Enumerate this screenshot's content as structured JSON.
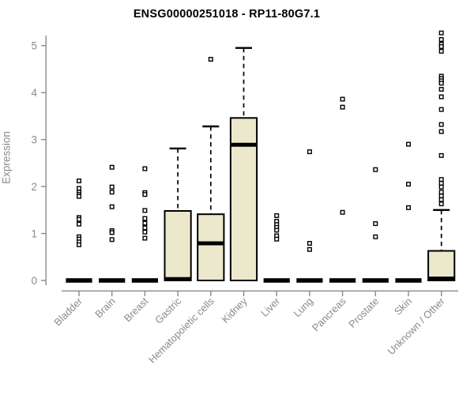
{
  "chart_data": {
    "type": "boxplot",
    "title": "ENSG00000251018 - RP11-80G7.1",
    "ylabel": "Expression",
    "ylim": [
      0,
      5.3
    ],
    "yticks": [
      0,
      1,
      2,
      3,
      4,
      5
    ],
    "grid": false,
    "legend": false,
    "categories": [
      "Bladder",
      "Brain",
      "Breast",
      "Gastric",
      "Hematopoietic cells",
      "Kidney",
      "Liver",
      "Lung",
      "Pancreas",
      "Prostate",
      "Skin",
      "Unknown / Other"
    ],
    "colors": {
      "box_fill": "#ECE8CC",
      "box_stroke": "#000000",
      "median": "#000000",
      "whisker": "#000000",
      "outlier": "#000000",
      "axis": "#8a8a8a",
      "tick_label": "#8a8a8a",
      "title": "#000000"
    },
    "boxes": [
      {
        "category": "Bladder",
        "q1": 0,
        "median": 0,
        "q3": 0,
        "whisker_low": 0,
        "whisker_high": 0,
        "outliers": [
          2.12,
          1.96,
          1.88,
          1.83,
          1.79,
          1.34,
          1.3,
          1.2,
          0.93,
          0.88,
          0.82,
          0.76
        ]
      },
      {
        "category": "Brain",
        "q1": 0,
        "median": 0,
        "q3": 0,
        "whisker_low": 0,
        "whisker_high": 0,
        "outliers": [
          2.41,
          1.99,
          1.88,
          1.57,
          1.06,
          1.02,
          0.87
        ]
      },
      {
        "category": "Breast",
        "q1": 0,
        "median": 0,
        "q3": 0,
        "whisker_low": 0,
        "whisker_high": 0,
        "outliers": [
          2.38,
          1.87,
          1.83,
          1.49,
          1.32,
          1.22,
          1.12,
          1.03,
          0.9
        ]
      },
      {
        "category": "Gastric",
        "q1": 0,
        "median": 0.03,
        "q3": 1.48,
        "whisker_low": 0,
        "whisker_high": 2.81,
        "outliers": []
      },
      {
        "category": "Hematopoietic cells",
        "q1": 0,
        "median": 0.79,
        "q3": 1.41,
        "whisker_low": 0,
        "whisker_high": 3.28,
        "outliers": [
          4.71
        ]
      },
      {
        "category": "Kidney",
        "q1": 0,
        "median": 2.89,
        "q3": 3.46,
        "whisker_low": 0,
        "whisker_high": 4.95,
        "outliers": []
      },
      {
        "category": "Liver",
        "q1": 0,
        "median": 0,
        "q3": 0,
        "whisker_low": 0,
        "whisker_high": 0,
        "outliers": [
          1.38,
          1.26,
          1.19,
          1.13,
          1.07,
          0.95,
          0.88
        ]
      },
      {
        "category": "Lung",
        "q1": 0,
        "median": 0,
        "q3": 0,
        "whisker_low": 0,
        "whisker_high": 0,
        "outliers": [
          2.74,
          0.79,
          0.66
        ]
      },
      {
        "category": "Pancreas",
        "q1": 0,
        "median": 0,
        "q3": 0,
        "whisker_low": 0,
        "whisker_high": 0,
        "outliers": [
          3.86,
          3.69,
          1.45
        ]
      },
      {
        "category": "Prostate",
        "q1": 0,
        "median": 0,
        "q3": 0,
        "whisker_low": 0,
        "whisker_high": 0,
        "outliers": [
          2.36,
          1.21,
          0.93
        ]
      },
      {
        "category": "Skin",
        "q1": 0,
        "median": 0,
        "q3": 0,
        "whisker_low": 0,
        "whisker_high": 0,
        "outliers": [
          2.9,
          2.05,
          1.55
        ]
      },
      {
        "category": "Unknown / Other",
        "q1": 0,
        "median": 0.04,
        "q3": 0.63,
        "whisker_low": 0,
        "whisker_high": 1.5,
        "outliers": [
          5.27,
          5.13,
          5.03,
          4.98,
          4.88,
          4.35,
          4.3,
          4.25,
          4.2,
          4.07,
          3.91,
          3.64,
          3.32,
          3.17,
          2.66,
          2.15,
          2.07,
          1.99,
          1.88,
          1.8,
          1.72,
          1.63
        ]
      }
    ]
  }
}
